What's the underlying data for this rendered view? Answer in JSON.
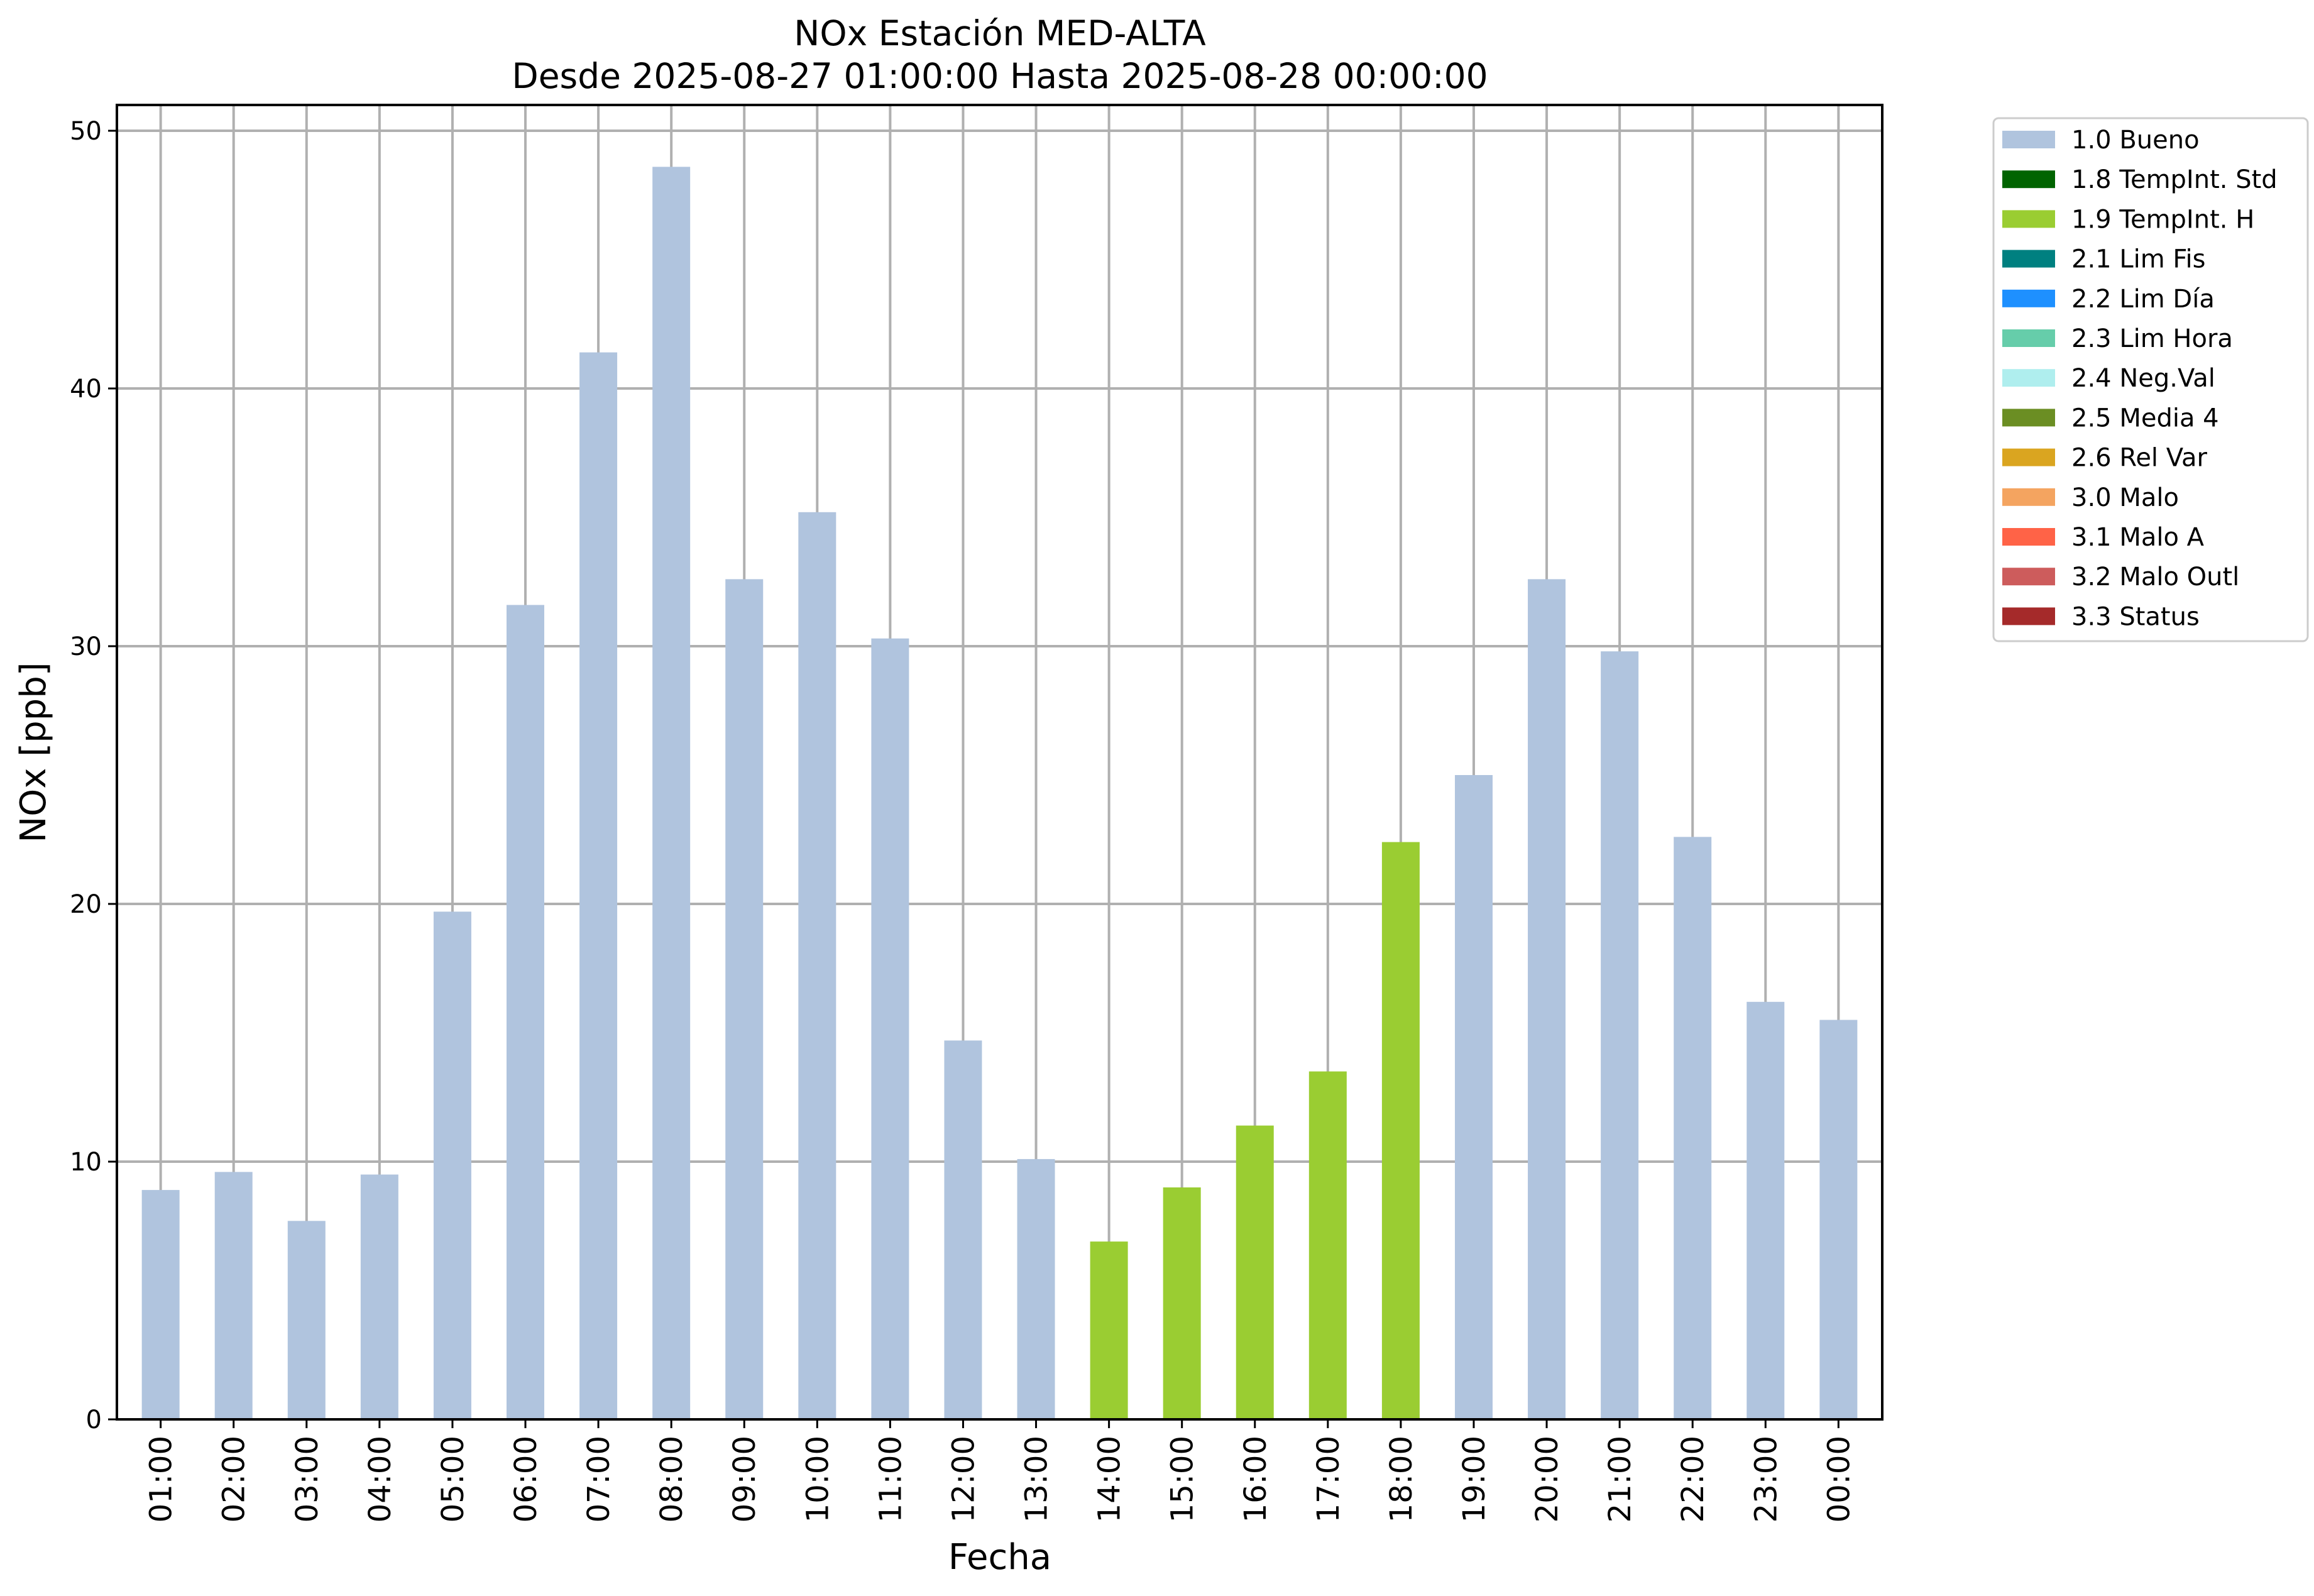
{
  "chart_data": {
    "type": "bar",
    "title": "NOx Estación MED-ALTA",
    "subtitle": "Desde 2025-08-27 01:00:00 Hasta 2025-08-28 00:00:00",
    "xlabel": "Fecha",
    "ylabel": "NOx [ppb]",
    "ylim": [
      0,
      51
    ],
    "yticks": [
      "0",
      "10",
      "20",
      "30",
      "40",
      "50"
    ],
    "grid": true,
    "legend_position": "outside-top-right",
    "categories": [
      "01:00",
      "02:00",
      "03:00",
      "04:00",
      "05:00",
      "06:00",
      "07:00",
      "08:00",
      "09:00",
      "10:00",
      "11:00",
      "12:00",
      "13:00",
      "14:00",
      "15:00",
      "16:00",
      "17:00",
      "18:00",
      "19:00",
      "20:00",
      "21:00",
      "22:00",
      "23:00",
      "00:00"
    ],
    "values": [
      8.9,
      9.6,
      7.7,
      9.5,
      19.7,
      31.6,
      41.4,
      48.6,
      32.6,
      35.2,
      30.3,
      14.7,
      10.1,
      6.9,
      9.0,
      11.4,
      13.5,
      22.4,
      25.0,
      32.6,
      29.8,
      22.6,
      16.2,
      15.5
    ],
    "flags": [
      "1.0 Bueno",
      "1.0 Bueno",
      "1.0 Bueno",
      "1.0 Bueno",
      "1.0 Bueno",
      "1.0 Bueno",
      "1.0 Bueno",
      "1.0 Bueno",
      "1.0 Bueno",
      "1.0 Bueno",
      "1.0 Bueno",
      "1.0 Bueno",
      "1.0 Bueno",
      "1.9 TempInt. H",
      "1.9 TempInt. H",
      "1.9 TempInt. H",
      "1.9 TempInt. H",
      "1.9 TempInt. H",
      "1.0 Bueno",
      "1.0 Bueno",
      "1.0 Bueno",
      "1.0 Bueno",
      "1.0 Bueno",
      "1.0 Bueno"
    ],
    "legend": [
      {
        "label": "1.0 Bueno",
        "color": "#b0c4de"
      },
      {
        "label": "1.8 TempInt. Std",
        "color": "#006400"
      },
      {
        "label": "1.9 TempInt. H",
        "color": "#9acd32"
      },
      {
        "label": "2.1 Lim Fis",
        "color": "#008080"
      },
      {
        "label": "2.2 Lim Día",
        "color": "#1e90ff"
      },
      {
        "label": "2.3 Lim Hora",
        "color": "#66cdaa"
      },
      {
        "label": "2.4 Neg.Val",
        "color": "#afeeee"
      },
      {
        "label": "2.5 Media 4",
        "color": "#6b8e23"
      },
      {
        "label": "2.6 Rel Var",
        "color": "#daa520"
      },
      {
        "label": "3.0 Malo",
        "color": "#f4a460"
      },
      {
        "label": "3.1 Malo A",
        "color": "#ff6347"
      },
      {
        "label": "3.2 Malo Outl",
        "color": "#cd5c5c"
      },
      {
        "label": "3.3 Status",
        "color": "#a52a2a"
      }
    ]
  }
}
